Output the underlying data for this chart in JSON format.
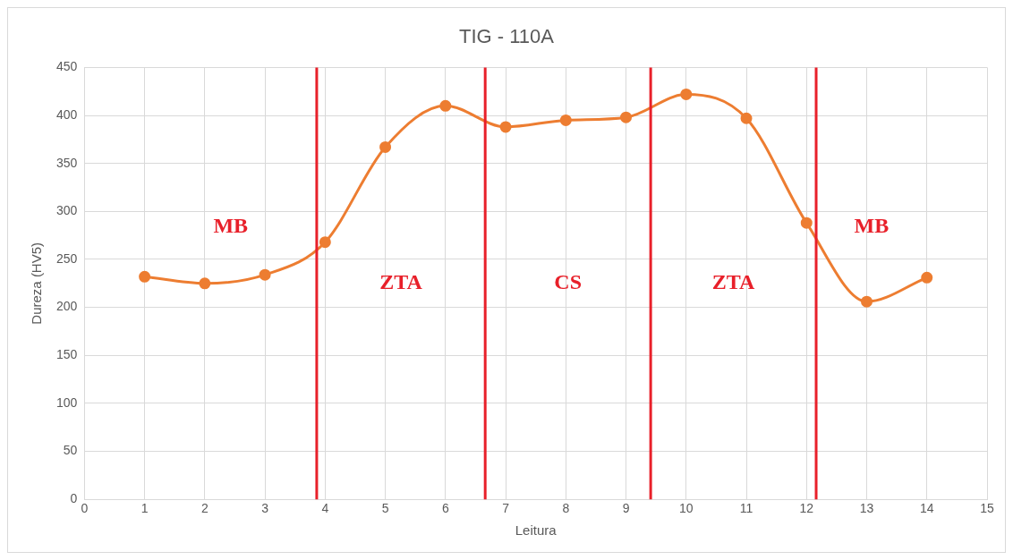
{
  "chart_data": {
    "type": "line",
    "title": "TIG - 110A",
    "xlabel": "Leitura",
    "ylabel": "Dureza (HV5)",
    "x": [
      1,
      2,
      3,
      4,
      5,
      6,
      7,
      8,
      9,
      10,
      11,
      12,
      13,
      14
    ],
    "series": [
      {
        "color": "#ed7d31",
        "values": [
          232,
          225,
          234,
          268,
          367,
          410,
          388,
          395,
          398,
          422,
          397,
          288,
          206,
          231
        ]
      }
    ],
    "xlim": [
      0,
      15
    ],
    "xticks": [
      0,
      1,
      2,
      3,
      4,
      5,
      6,
      7,
      8,
      9,
      10,
      11,
      12,
      13,
      14,
      15
    ],
    "ylim": [
      0,
      450
    ],
    "yticks": [
      0,
      50,
      100,
      150,
      200,
      250,
      300,
      350,
      400,
      450
    ],
    "grid": true,
    "legend": false,
    "marker": "circle",
    "line_style": "solid",
    "ref_lines": [
      {
        "axis": "x",
        "value": 3.86,
        "color": "#e8202a"
      },
      {
        "axis": "x",
        "value": 6.66,
        "color": "#e8202a"
      },
      {
        "axis": "x",
        "value": 9.41,
        "color": "#e8202a"
      },
      {
        "axis": "x",
        "value": 12.16,
        "color": "#e8202a"
      }
    ],
    "annotations": [
      "MB",
      "ZTA",
      "CS",
      "ZTA",
      "MB"
    ]
  }
}
